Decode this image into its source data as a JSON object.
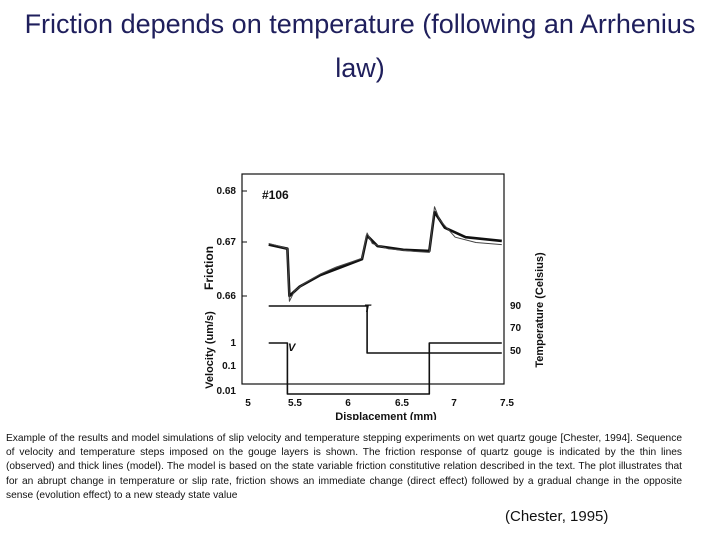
{
  "slide": {
    "title": "Friction depends on temperature (following an Arrhenius law)",
    "caption": "Example of the results and model simulations of slip velocity and temperature stepping experiments on wet quartz gouge [Chester, 1994]. Sequence of velocity and temperature steps imposed on the gouge layers is shown. The friction response of quartz gouge is indicated by the thin lines (observed) and thick lines (model). The model is based on the state variable friction constitutive relation described in the text. The plot illustrates that for an abrupt change in temperature or slip rate, friction shows an immediate change (direct effect) followed by a gradual change in the opposite sense (evolution effect) to a new steady state value",
    "citation": "(Chester, 1995)"
  },
  "figure": {
    "sample_label": "#106",
    "friction_axis_label": "Friction",
    "velocity_axis_label": "Velocity (um/s)",
    "temperature_axis_label": "Temperature (Celsius)",
    "x_axis_label": "Displacement (mm)",
    "T_label": "T",
    "V_label": "V",
    "x_ticks": [
      "5",
      "5.5",
      "6",
      "6.5",
      "7",
      "7.5"
    ],
    "friction_ticks": [
      "0.68",
      "0.67",
      "0.66"
    ],
    "velocity_ticks": [
      "1",
      "0.1",
      "0.01"
    ],
    "temperature_ticks": [
      "90",
      "70",
      "50"
    ]
  },
  "chart_data": {
    "type": "line",
    "xlabel": "Displacement (mm)",
    "xlim": [
      5,
      7.5
    ],
    "friction": {
      "ylabel": "Friction",
      "ylim": [
        0.655,
        0.685
      ],
      "observed_thin": [
        [
          5.2,
          0.67
        ],
        [
          5.3,
          0.6695
        ],
        [
          5.38,
          0.669
        ],
        [
          5.4,
          0.659
        ],
        [
          5.45,
          0.661
        ],
        [
          5.55,
          0.6625
        ],
        [
          5.7,
          0.6642
        ],
        [
          5.85,
          0.6655
        ],
        [
          6.0,
          0.6665
        ],
        [
          6.1,
          0.6672
        ],
        [
          6.15,
          0.672
        ],
        [
          6.2,
          0.67
        ],
        [
          6.35,
          0.669
        ],
        [
          6.6,
          0.6685
        ],
        [
          6.75,
          0.6683
        ],
        [
          6.8,
          0.677
        ],
        [
          6.85,
          0.6745
        ],
        [
          7.0,
          0.6712
        ],
        [
          7.2,
          0.6702
        ],
        [
          7.45,
          0.6698
        ]
      ],
      "model_thick": [
        [
          5.2,
          0.6698
        ],
        [
          5.38,
          0.669
        ],
        [
          5.4,
          0.66
        ],
        [
          5.5,
          0.6618
        ],
        [
          5.7,
          0.664
        ],
        [
          5.9,
          0.6655
        ],
        [
          6.1,
          0.667
        ],
        [
          6.15,
          0.6715
        ],
        [
          6.25,
          0.6695
        ],
        [
          6.5,
          0.6688
        ],
        [
          6.75,
          0.6686
        ],
        [
          6.8,
          0.676
        ],
        [
          6.9,
          0.673
        ],
        [
          7.1,
          0.6712
        ],
        [
          7.45,
          0.6705
        ]
      ]
    },
    "temperature": {
      "ylabel": "Temperature (Celsius)",
      "ticks": [
        90,
        70,
        50
      ],
      "series": [
        [
          5.2,
          90
        ],
        [
          6.15,
          90
        ],
        [
          6.15,
          50
        ],
        [
          7.45,
          50
        ]
      ]
    },
    "velocity": {
      "ylabel": "Velocity (um/s)",
      "ticks": [
        1,
        0.1,
        0.01
      ],
      "series": [
        [
          5.2,
          1
        ],
        [
          5.38,
          1
        ],
        [
          5.38,
          0.01
        ],
        [
          6.75,
          0.01
        ],
        [
          6.75,
          1
        ],
        [
          7.45,
          1
        ]
      ]
    }
  }
}
